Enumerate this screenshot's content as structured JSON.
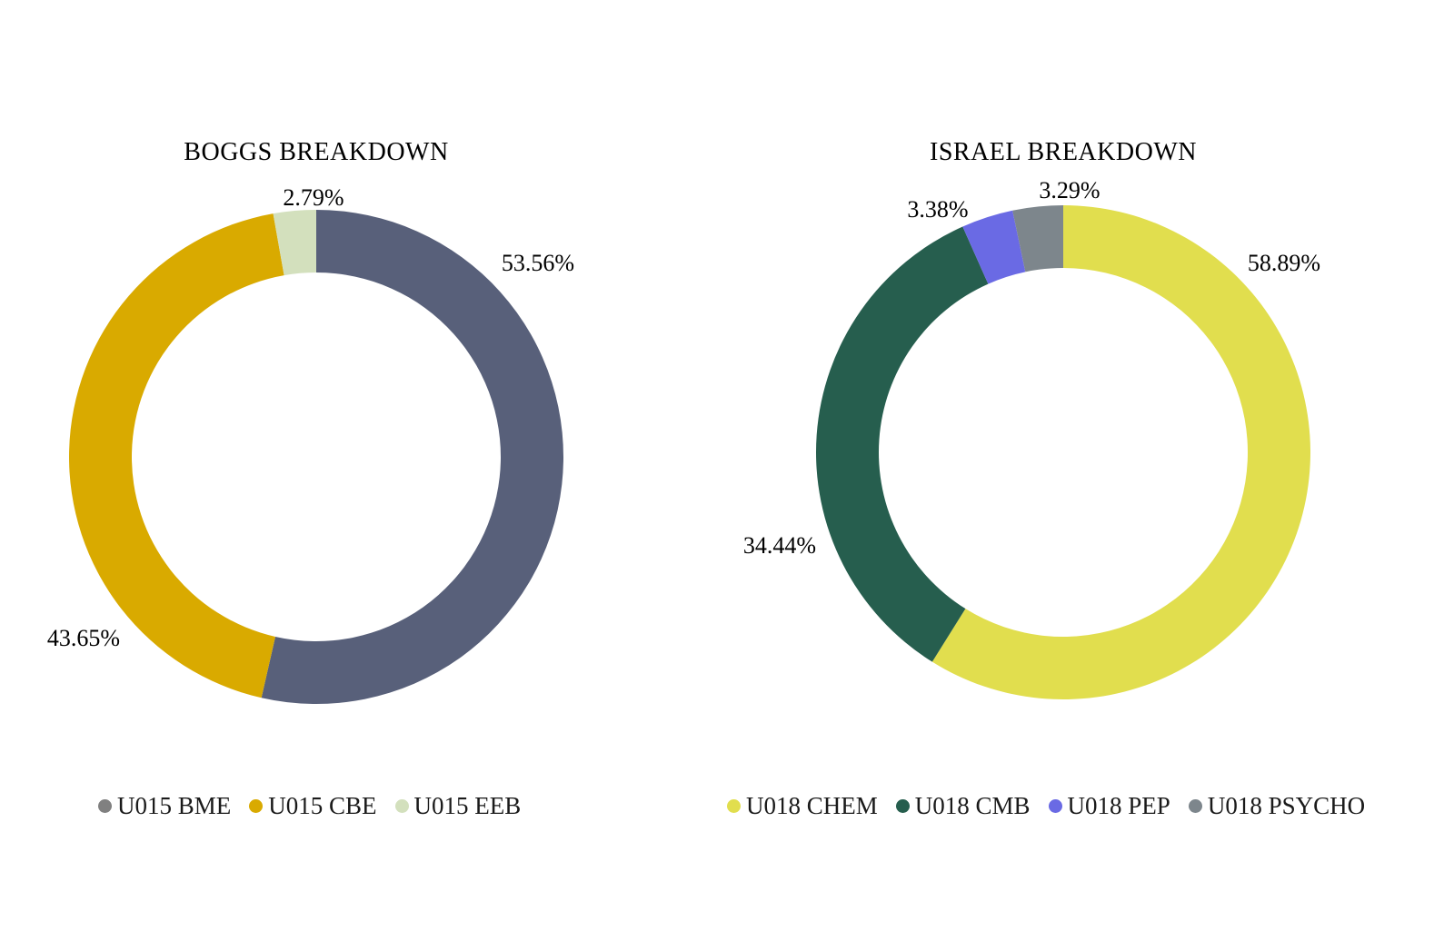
{
  "chart_data": [
    {
      "type": "pie",
      "title": "BOGGS BREAKDOWN",
      "slices": [
        {
          "label": "U015 BME",
          "value": 53.56,
          "display": "53.56%",
          "color": "#58607a"
        },
        {
          "label": "U015 CBE",
          "value": 43.65,
          "display": "43.65%",
          "color": "#d9aa00"
        },
        {
          "label": "U015 EEB",
          "value": 2.79,
          "display": "2.79%",
          "color": "#d3e0bd"
        }
      ],
      "legend_position": "bottom"
    },
    {
      "type": "pie",
      "title": "ISRAEL BREAKDOWN",
      "slices": [
        {
          "label": "U018 CHEM",
          "value": 58.89,
          "display": "58.89%",
          "color": "#e1de4e"
        },
        {
          "label": "U018 CMB",
          "value": 34.44,
          "display": "34.44%",
          "color": "#265e4e"
        },
        {
          "label": "U018 PEP",
          "value": 3.38,
          "display": "3.38%",
          "color": "#6a6ae4"
        },
        {
          "label": "U018 PSYCHO",
          "value": 3.29,
          "display": "3.29%",
          "color": "#7d868c"
        }
      ],
      "legend_position": "bottom"
    }
  ],
  "legend_dot_colors": {
    "U015 BME": "#808080"
  }
}
